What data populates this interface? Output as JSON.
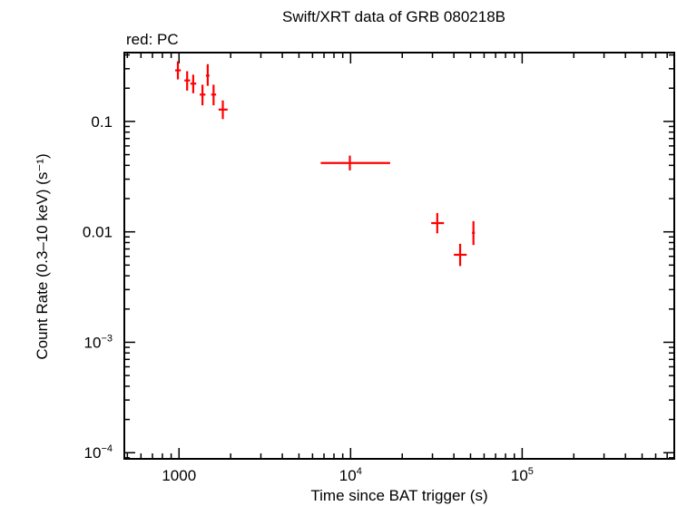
{
  "chart_data": {
    "type": "scatter",
    "title": "Swift/XRT data of GRB 080218B",
    "subtitle": "red: PC",
    "xlabel": "Time since BAT trigger (s)",
    "ylabel": "Count Rate (0.3–10 keV) (s⁻¹)",
    "xscale": "log",
    "yscale": "log",
    "xlim": [
      480,
      770000
    ],
    "ylim": [
      8.8e-05,
      0.42
    ],
    "x_ticks": [
      {
        "value": 1000,
        "base": "1000",
        "exp": ""
      },
      {
        "value": 10000,
        "base": "10",
        "exp": "4"
      },
      {
        "value": 100000,
        "base": "10",
        "exp": "5"
      }
    ],
    "y_ticks": [
      {
        "value": 0.1,
        "base": "0.1",
        "exp": ""
      },
      {
        "value": 0.01,
        "base": "0.01",
        "exp": ""
      },
      {
        "value": 0.001,
        "base": "10",
        "exp": "−3"
      },
      {
        "value": 0.0001,
        "base": "10",
        "exp": "−4"
      }
    ],
    "grid": false,
    "series": [
      {
        "name": "PC",
        "color": "#ff0000",
        "points": [
          {
            "x": 985,
            "xlo": 950,
            "xhi": 1025,
            "y": 0.29,
            "ylo": 0.24,
            "yhi": 0.35
          },
          {
            "x": 1115,
            "xlo": 1075,
            "xhi": 1160,
            "y": 0.235,
            "ylo": 0.19,
            "yhi": 0.285
          },
          {
            "x": 1210,
            "xlo": 1165,
            "xhi": 1260,
            "y": 0.22,
            "ylo": 0.18,
            "yhi": 0.265
          },
          {
            "x": 1370,
            "xlo": 1320,
            "xhi": 1425,
            "y": 0.175,
            "ylo": 0.14,
            "yhi": 0.215
          },
          {
            "x": 1470,
            "xlo": 1435,
            "xhi": 1505,
            "y": 0.26,
            "ylo": 0.21,
            "yhi": 0.33
          },
          {
            "x": 1590,
            "xlo": 1540,
            "xhi": 1645,
            "y": 0.175,
            "ylo": 0.14,
            "yhi": 0.215
          },
          {
            "x": 1800,
            "xlo": 1700,
            "xhi": 1920,
            "y": 0.128,
            "ylo": 0.105,
            "yhi": 0.155
          },
          {
            "x": 9900,
            "xlo": 6700,
            "xhi": 17000,
            "y": 0.042,
            "ylo": 0.036,
            "yhi": 0.049
          },
          {
            "x": 32000,
            "xlo": 29500,
            "xhi": 35000,
            "y": 0.012,
            "ylo": 0.0097,
            "yhi": 0.0148
          },
          {
            "x": 43500,
            "xlo": 40000,
            "xhi": 47500,
            "y": 0.0062,
            "ylo": 0.0049,
            "yhi": 0.0078
          },
          {
            "x": 52000,
            "xlo": 51000,
            "xhi": 53000,
            "y": 0.0098,
            "ylo": 0.0076,
            "yhi": 0.0125
          }
        ]
      }
    ]
  }
}
